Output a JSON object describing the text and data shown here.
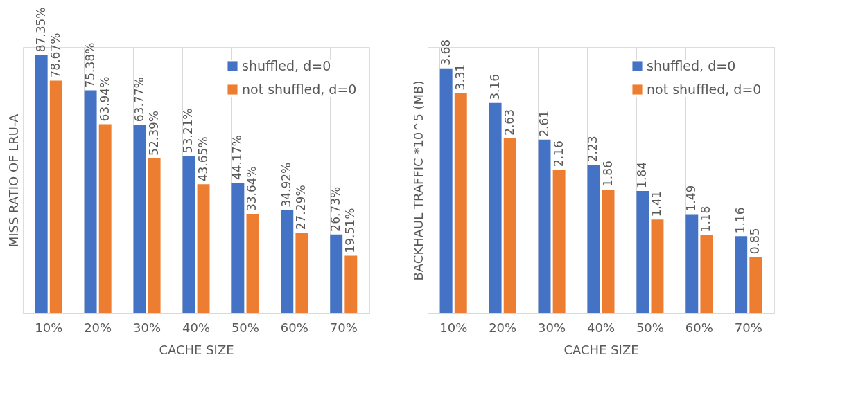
{
  "chart_data": [
    {
      "type": "bar",
      "ylabel": "MISS RATIO OF LRU-A",
      "xlabel": "CACHE SIZE",
      "categories": [
        "10%",
        "20%",
        "30%",
        "40%",
        "50%",
        "60%",
        "70%"
      ],
      "grid": "x",
      "legend": "top right",
      "tick_labels": "x",
      "series": [
        {
          "name": "shuffled, d=0",
          "color": "#4472c4",
          "values": [
            87.35,
            75.38,
            63.77,
            53.21,
            44.17,
            34.92,
            26.73
          ],
          "value_labels": [
            "87.35%",
            "75.38%",
            "63.77%",
            "53.21%",
            "44.17%",
            "34.92%",
            "26.73%"
          ]
        },
        {
          "name": "not shuffled, d=0",
          "color": "#ed7d31",
          "values": [
            78.67,
            63.94,
            52.39,
            43.65,
            33.64,
            27.29,
            19.51
          ],
          "value_labels": [
            "78.67%",
            "63.94%",
            "52.39%",
            "43.65%",
            "33.64%",
            "27.29%",
            "19.51%"
          ]
        }
      ]
    },
    {
      "type": "bar",
      "ylabel": "BACKHAUL TRAFFIC *10^5 (MB)",
      "xlabel": "CACHE SIZE",
      "categories": [
        "10%",
        "20%",
        "30%",
        "40%",
        "50%",
        "60%",
        "70%"
      ],
      "grid": "x",
      "legend": "top right",
      "tick_labels": "x",
      "data_labels": true,
      "series": [
        {
          "name": "shuffled, d=0",
          "color": "#4472c4",
          "values": [
            3.68,
            3.16,
            2.61,
            2.23,
            1.84,
            1.49,
            1.16
          ]
        },
        {
          "name": "not shuffled, d=0",
          "color": "#ed7d31",
          "values": [
            3.31,
            2.63,
            2.16,
            1.86,
            1.41,
            1.18,
            0.85
          ]
        }
      ]
    }
  ]
}
